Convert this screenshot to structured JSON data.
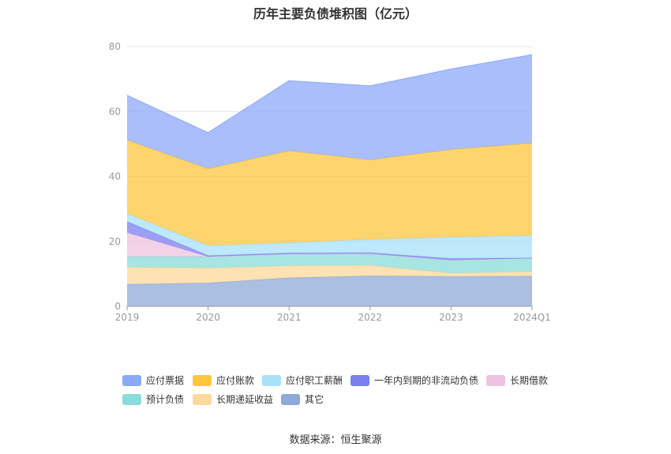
{
  "chart_data": {
    "type": "area",
    "stacked": true,
    "title": "历年主要负债堆积图（亿元）",
    "categories": [
      "2019",
      "2020",
      "2021",
      "2022",
      "2023",
      "2024Q1"
    ],
    "ylim": [
      0,
      80
    ],
    "yticks": [
      0,
      20,
      40,
      60,
      80
    ],
    "grid": true,
    "legend_position": "bottom",
    "series": [
      {
        "name": "其它",
        "color": "#8fa9d8",
        "values": [
          6.8,
          7.2,
          8.8,
          9.4,
          9.2,
          9.3
        ]
      },
      {
        "name": "长期递延收益",
        "color": "#ffd89a",
        "values": [
          5.3,
          4.6,
          3.7,
          3.2,
          1.0,
          1.4
        ]
      },
      {
        "name": "预计负债",
        "color": "#8adcd8",
        "values": [
          3.2,
          3.5,
          3.6,
          3.6,
          4.0,
          4.1
        ]
      },
      {
        "name": "长期借款",
        "color": "#eec3df",
        "values": [
          7.4,
          0.0,
          0.0,
          0.0,
          0.0,
          0.0
        ]
      },
      {
        "name": "一年内到期的非流动负债",
        "color": "#7b7ff0",
        "values": [
          3.4,
          0.3,
          0.3,
          0.3,
          0.5,
          0.1
        ]
      },
      {
        "name": "应付职工薪酬",
        "color": "#a8e0fa",
        "values": [
          2.5,
          3.1,
          3.2,
          4.1,
          6.6,
          6.9
        ]
      },
      {
        "name": "应付账款",
        "color": "#ffc53d",
        "values": [
          22.6,
          23.7,
          28.3,
          24.5,
          27.0,
          28.5
        ]
      },
      {
        "name": "应付票据",
        "color": "#8ca8f8",
        "values": [
          13.8,
          11.1,
          21.6,
          22.8,
          24.8,
          27.2
        ]
      }
    ]
  },
  "legend": [
    {
      "name": "应付票据",
      "color": "#8ca8f8"
    },
    {
      "name": "应付账款",
      "color": "#ffc53d"
    },
    {
      "name": "应付职工薪酬",
      "color": "#a8e0fa"
    },
    {
      "name": "一年内到期的非流动负债",
      "color": "#7b7ff0"
    },
    {
      "name": "长期借款",
      "color": "#eec3df"
    },
    {
      "name": "预计负债",
      "color": "#8adcd8"
    },
    {
      "name": "长期递延收益",
      "color": "#ffd89a"
    },
    {
      "name": "其它",
      "color": "#8fa9d8"
    }
  ],
  "source": "数据来源：恒生聚源"
}
